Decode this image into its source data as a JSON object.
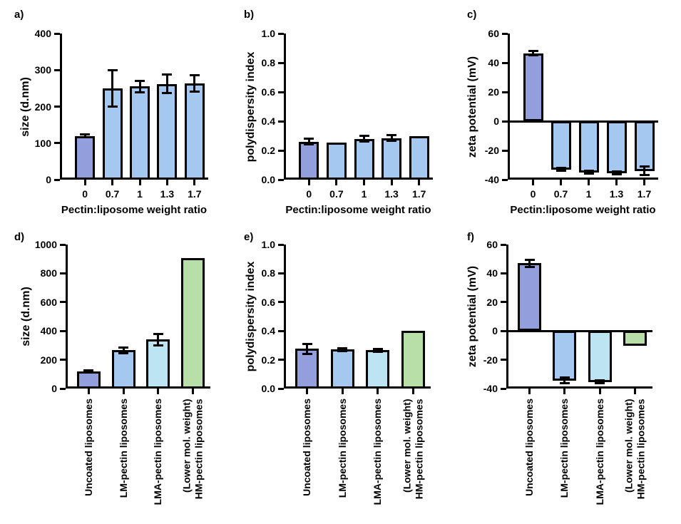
{
  "chart_data": {
    "type": "bar",
    "layout_hint": "2 rows x 3 columns of GraphPad-style bar charts with SD error bars, no grid, no legend",
    "colors": {
      "periwinkle": "#939edd",
      "lightblue": "#a4c8f0",
      "cyan": "#bce4f2",
      "green": "#b9dfa8",
      "axis": "#000000"
    },
    "panels": [
      {
        "id": "a",
        "letter": "a)",
        "ylabel": "size (d.nm)",
        "xtitle": "Pectin:liposome weight ratio",
        "ylim": [
          0,
          400
        ],
        "zero_line": false,
        "yticks": [
          {
            "v": 400,
            "t": "400"
          },
          {
            "v": 300,
            "t": "300"
          },
          {
            "v": 200,
            "t": "200"
          },
          {
            "v": 100,
            "t": "100"
          },
          {
            "v": 0,
            "t": "0"
          }
        ],
        "bars": [
          {
            "label": [
              "0"
            ],
            "value": 120,
            "err": 4,
            "color": "periwinkle"
          },
          {
            "label": [
              "0.7"
            ],
            "value": 250,
            "err": 50,
            "color": "lightblue"
          },
          {
            "label": [
              "1"
            ],
            "value": 255,
            "err": 15,
            "color": "lightblue"
          },
          {
            "label": [
              "1.3"
            ],
            "value": 262,
            "err": 25,
            "color": "lightblue"
          },
          {
            "label": [
              "1.7"
            ],
            "value": 263,
            "err": 22,
            "color": "lightblue"
          }
        ]
      },
      {
        "id": "b",
        "letter": "b)",
        "ylabel": "polydispersity index",
        "xtitle": "Pectin:liposome weight ratio",
        "ylim": [
          0,
          1
        ],
        "zero_line": false,
        "yticks": [
          {
            "v": 1.0,
            "t": "1.0"
          },
          {
            "v": 0.8,
            "t": "0.8"
          },
          {
            "v": 0.6,
            "t": "0.6"
          },
          {
            "v": 0.4,
            "t": "0.4"
          },
          {
            "v": 0.2,
            "t": "0.2"
          },
          {
            "v": 0.0,
            "t": "0.0"
          }
        ],
        "bars": [
          {
            "label": [
              "0"
            ],
            "value": 0.26,
            "err": 0.02,
            "color": "periwinkle"
          },
          {
            "label": [
              "0.7"
            ],
            "value": 0.255,
            "err": 0,
            "color": "lightblue"
          },
          {
            "label": [
              "1"
            ],
            "value": 0.28,
            "err": 0.02,
            "color": "lightblue"
          },
          {
            "label": [
              "1.3"
            ],
            "value": 0.285,
            "err": 0.02,
            "color": "lightblue"
          },
          {
            "label": [
              "1.7"
            ],
            "value": 0.3,
            "err": 0,
            "color": "lightblue"
          }
        ]
      },
      {
        "id": "c",
        "letter": "c)",
        "ylabel": "zeta potential (mV)",
        "xtitle": "Pectin:liposome weight ratio",
        "ylim": [
          -40,
          60
        ],
        "zero_line": true,
        "yticks": [
          {
            "v": 60,
            "t": "60"
          },
          {
            "v": 40,
            "t": "40"
          },
          {
            "v": 20,
            "t": "20"
          },
          {
            "v": 0,
            "t": "0"
          },
          {
            "v": -20,
            "t": "-20"
          },
          {
            "v": -40,
            "t": "-40"
          }
        ],
        "bars": [
          {
            "label": [
              "0"
            ],
            "value": 46.5,
            "err": 1.5,
            "color": "periwinkle"
          },
          {
            "label": [
              "0.7"
            ],
            "value": -33,
            "err": 1,
            "color": "lightblue"
          },
          {
            "label": [
              "1"
            ],
            "value": -35,
            "err": 1,
            "color": "lightblue"
          },
          {
            "label": [
              "1.3"
            ],
            "value": -35.5,
            "err": 1,
            "color": "lightblue"
          },
          {
            "label": [
              "1.7"
            ],
            "value": -34,
            "err": 3,
            "color": "lightblue"
          }
        ]
      },
      {
        "id": "d",
        "letter": "d)",
        "ylabel": "size (d.nm)",
        "xtitle": "",
        "ylim": [
          0,
          1000
        ],
        "zero_line": false,
        "yticks": [
          {
            "v": 1000,
            "t": "1000"
          },
          {
            "v": 800,
            "t": "800"
          },
          {
            "v": 600,
            "t": "600"
          },
          {
            "v": 400,
            "t": "400"
          },
          {
            "v": 200,
            "t": "200"
          },
          {
            "v": 0,
            "t": "0"
          }
        ],
        "bars": [
          {
            "label": [
              "Uncoated liposomes"
            ],
            "value": 120,
            "err": 5,
            "color": "periwinkle"
          },
          {
            "label": [
              "LM-pectin liposomes"
            ],
            "value": 265,
            "err": 20,
            "color": "lightblue"
          },
          {
            "label": [
              "LMA-pectin liposomes"
            ],
            "value": 340,
            "err": 40,
            "color": "cyan"
          },
          {
            "label": [
              "(Lower mol. weight)",
              "HM-pectin liposomes"
            ],
            "value": 905,
            "err": 0,
            "color": "green"
          }
        ]
      },
      {
        "id": "e",
        "letter": "e)",
        "ylabel": "polydispersity index",
        "xtitle": "",
        "ylim": [
          0,
          1
        ],
        "zero_line": false,
        "yticks": [
          {
            "v": 1.0,
            "t": "1.0"
          },
          {
            "v": 0.8,
            "t": "0.8"
          },
          {
            "v": 0.6,
            "t": "0.6"
          },
          {
            "v": 0.4,
            "t": "0.4"
          },
          {
            "v": 0.2,
            "t": "0.2"
          },
          {
            "v": 0.0,
            "t": "0.0"
          }
        ],
        "bars": [
          {
            "label": [
              "Uncoated liposomes"
            ],
            "value": 0.275,
            "err": 0.035,
            "color": "periwinkle"
          },
          {
            "label": [
              "LM-pectin liposomes"
            ],
            "value": 0.27,
            "err": 0.01,
            "color": "lightblue"
          },
          {
            "label": [
              "LMA-pectin liposomes"
            ],
            "value": 0.265,
            "err": 0.01,
            "color": "cyan"
          },
          {
            "label": [
              "(Lower mol. weight)",
              "HM-pectin liposomes"
            ],
            "value": 0.4,
            "err": 0,
            "color": "green"
          }
        ]
      },
      {
        "id": "f",
        "letter": "f)",
        "ylabel": "zeta potential (mV)",
        "xtitle": "",
        "ylim": [
          -40,
          60
        ],
        "zero_line": true,
        "yticks": [
          {
            "v": 60,
            "t": "60"
          },
          {
            "v": 40,
            "t": "40"
          },
          {
            "v": 20,
            "t": "20"
          },
          {
            "v": 0,
            "t": "0"
          },
          {
            "v": -20,
            "t": "-20"
          },
          {
            "v": -40,
            "t": "-40"
          }
        ],
        "bars": [
          {
            "label": [
              "Uncoated liposomes"
            ],
            "value": 47,
            "err": 2.5,
            "color": "periwinkle"
          },
          {
            "label": [
              "LM-pectin liposomes"
            ],
            "value": -34.5,
            "err": 2,
            "color": "lightblue"
          },
          {
            "label": [
              "LMA-pectin liposomes"
            ],
            "value": -35.5,
            "err": 1,
            "color": "cyan"
          },
          {
            "label": [
              "(Lower mol. weight)",
              "HM-pectin liposomes"
            ],
            "value": -10.5,
            "err": 0,
            "color": "green"
          }
        ]
      }
    ]
  }
}
